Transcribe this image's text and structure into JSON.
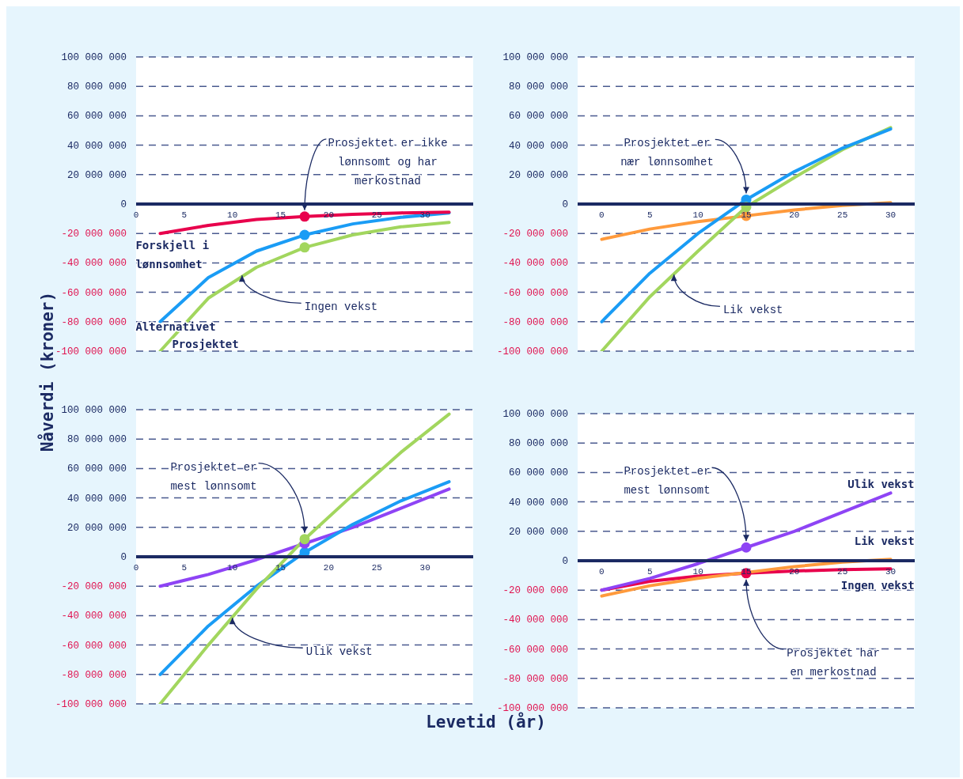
{
  "chart_data": [
    {
      "type": "line",
      "xlim": [
        0,
        35
      ],
      "xticks": [
        0,
        5,
        10,
        15,
        20,
        25,
        30
      ],
      "ylim": [
        -100000000,
        100000000
      ],
      "yticks": [
        {
          "value": -100000000,
          "label": "-100 000 000"
        },
        {
          "value": -80000000,
          "label": "-80 000 000"
        },
        {
          "value": -60000000,
          "label": "-60 000 000"
        },
        {
          "value": -40000000,
          "label": "-40 000 000"
        },
        {
          "value": -20000000,
          "label": "-20 000 000"
        },
        {
          "value": 0,
          "label": "0"
        },
        {
          "value": 20000000,
          "label": "20 000 000"
        },
        {
          "value": 40000000,
          "label": "40 000 000"
        },
        {
          "value": 60000000,
          "label": "60 000 000"
        },
        {
          "value": 80000000,
          "label": "80 000 000"
        },
        {
          "value": 100000000,
          "label": "100 000 000"
        }
      ],
      "grid": "y",
      "legend": false,
      "ylabel": "Nåverdi (kroner)",
      "series": [
        {
          "name": "Prosjektet",
          "type": "line",
          "color": "#a2d65e",
          "x": [
            2.5,
            7.5,
            12.5,
            17.5,
            22.5,
            27.5,
            32.5
          ],
          "values": [
            -100000000,
            -64000000,
            -43000000,
            -29500000,
            -21000000,
            -15500000,
            -12500000
          ]
        },
        {
          "name": "Alternativet",
          "type": "line",
          "color": "#1a9cf5",
          "x": [
            2.5,
            7.5,
            12.5,
            17.5,
            22.5,
            27.5,
            32.5
          ],
          "values": [
            -80000000,
            -50000000,
            -32000000,
            -21000000,
            -13500000,
            -9000000,
            -6000000
          ]
        },
        {
          "name": "Forskjell i lønnsomhet",
          "type": "line",
          "color": "#e8004c",
          "x": [
            2.5,
            7.5,
            12.5,
            17.5,
            22.5,
            27.5,
            32.5
          ],
          "values": [
            -20000000,
            -14500000,
            -10500000,
            -8500000,
            -7000000,
            -6000000,
            -5500000
          ]
        },
        {
          "type": "scatter",
          "marker": "circle",
          "color": "#a2d65e",
          "x": [
            17.5
          ],
          "values": [
            -29500000
          ]
        },
        {
          "type": "scatter",
          "marker": "circle",
          "color": "#1a9cf5",
          "x": [
            17.5
          ],
          "values": [
            -21000000
          ]
        },
        {
          "type": "scatter",
          "marker": "circle",
          "color": "#e8004c",
          "x": [
            17.5
          ],
          "values": [
            -8500000
          ]
        }
      ],
      "annotations": [
        {
          "text": "Prosjektet er ikke lønnsomt og har merkostnad",
          "x": 17.5,
          "y": -8500000
        },
        {
          "text": "Ingen vekst",
          "x": 11,
          "y": -48000000
        }
      ]
    },
    {
      "type": "line",
      "xlim": [
        -2.5,
        32.5
      ],
      "xticks": [
        0,
        5,
        10,
        15,
        20,
        25,
        30
      ],
      "ylim": [
        -100000000,
        100000000
      ],
      "yticks": [
        {
          "value": -100000000,
          "label": "-100 000 000"
        },
        {
          "value": -80000000,
          "label": "-80 000 000"
        },
        {
          "value": -60000000,
          "label": "-60 000 000"
        },
        {
          "value": -40000000,
          "label": "-40 000 000"
        },
        {
          "value": -20000000,
          "label": "-20 000 000"
        },
        {
          "value": 0,
          "label": "0"
        },
        {
          "value": 20000000,
          "label": "20 000 000"
        },
        {
          "value": 40000000,
          "label": "40 000 000"
        },
        {
          "value": 60000000,
          "label": "60 000 000"
        },
        {
          "value": 80000000,
          "label": "80 000 000"
        },
        {
          "value": 100000000,
          "label": "100 000 000"
        }
      ],
      "grid": "y",
      "legend": false,
      "series": [
        {
          "type": "line",
          "color": "#ff9a3c",
          "x": [
            0,
            5,
            10,
            15,
            20,
            25,
            30
          ],
          "values": [
            -24000000,
            -17000000,
            -12000000,
            -8000000,
            -4000000,
            -1000000,
            1000000
          ]
        },
        {
          "type": "line",
          "color": "#a2d65e",
          "x": [
            0,
            5,
            10,
            15,
            20,
            25,
            30
          ],
          "values": [
            -100000000,
            -63000000,
            -32000000,
            -2000000,
            18000000,
            37000000,
            52000000
          ]
        },
        {
          "type": "line",
          "color": "#1a9cf5",
          "x": [
            0,
            5,
            10,
            15,
            20,
            25,
            30
          ],
          "values": [
            -80000000,
            -47000000,
            -20000000,
            3000000,
            22000000,
            38000000,
            51000000
          ]
        },
        {
          "type": "scatter",
          "marker": "circle",
          "color": "#ff9a3c",
          "x": [
            15
          ],
          "values": [
            -8000000
          ]
        },
        {
          "type": "scatter",
          "marker": "circle",
          "color": "#1a9cf5",
          "x": [
            15
          ],
          "values": [
            3000000
          ]
        },
        {
          "type": "scatter",
          "marker": "circle",
          "color": "#a2d65e",
          "x": [
            15
          ],
          "values": [
            -2000000
          ]
        }
      ],
      "annotations": [
        {
          "text": "Prosjektet er nær lønnsomhet",
          "x": 15,
          "y": 3000000
        },
        {
          "text": "Lik vekst",
          "x": 7.5,
          "y": -47500000
        }
      ]
    },
    {
      "type": "line",
      "xlim": [
        0,
        35
      ],
      "xticks": [
        0,
        5,
        10,
        15,
        20,
        25,
        30
      ],
      "ylim": [
        -100000000,
        100000000
      ],
      "yticks": [
        {
          "value": -100000000,
          "label": "-100 000 000"
        },
        {
          "value": -80000000,
          "label": "-80 000 000"
        },
        {
          "value": -60000000,
          "label": "-60 000 000"
        },
        {
          "value": -40000000,
          "label": "-40 000 000"
        },
        {
          "value": -20000000,
          "label": "-20 000 000"
        },
        {
          "value": 0,
          "label": "0"
        },
        {
          "value": 20000000,
          "label": "20 000 000"
        },
        {
          "value": 40000000,
          "label": "40 000 000"
        },
        {
          "value": 60000000,
          "label": "60 000 000"
        },
        {
          "value": 80000000,
          "label": "80 000 000"
        },
        {
          "value": 100000000,
          "label": "100 000 000"
        }
      ],
      "grid": "y",
      "legend": false,
      "xlabel": "Levetid (år)",
      "series": [
        {
          "type": "line",
          "color": "#8e44f5",
          "x": [
            2.5,
            7.5,
            12.5,
            17.5,
            22.5,
            27.5,
            32.5
          ],
          "values": [
            -20000000,
            -12000000,
            -2000000,
            9000000,
            20000000,
            33000000,
            46000000
          ]
        },
        {
          "type": "line",
          "color": "#1a9cf5",
          "x": [
            2.5,
            7.5,
            12.5,
            17.5,
            22.5,
            27.5,
            32.5
          ],
          "values": [
            -80000000,
            -47000000,
            -20000000,
            3000000,
            22000000,
            38000000,
            51000000
          ]
        },
        {
          "type": "line",
          "color": "#a2d65e",
          "x": [
            2.5,
            7.5,
            12.5,
            17.5,
            22.5,
            27.5,
            32.5
          ],
          "values": [
            -100000000,
            -60000000,
            -22000000,
            12000000,
            42000000,
            71000000,
            97000000
          ]
        },
        {
          "type": "scatter",
          "marker": "circle",
          "color": "#1a9cf5",
          "x": [
            17.5
          ],
          "values": [
            3000000
          ]
        },
        {
          "type": "scatter",
          "marker": "circle",
          "color": "#8e44f5",
          "x": [
            17.5
          ],
          "values": [
            9000000
          ]
        },
        {
          "type": "scatter",
          "marker": "circle",
          "color": "#a2d65e",
          "x": [
            17.5
          ],
          "values": [
            12000000
          ]
        }
      ],
      "annotations": [
        {
          "text": "Prosjektet er mest lønnsomt",
          "x": 17.5,
          "y": 12000000
        },
        {
          "text": "Ulik vekst",
          "x": 10,
          "y": -41000000
        }
      ]
    },
    {
      "type": "line",
      "xlim": [
        -2.5,
        32.5
      ],
      "xticks": [
        0,
        5,
        10,
        15,
        20,
        25,
        30
      ],
      "ylim": [
        -100000000,
        100000000
      ],
      "yticks": [
        {
          "value": -100000000,
          "label": "-100 000 000"
        },
        {
          "value": -80000000,
          "label": "-80 000 000"
        },
        {
          "value": -60000000,
          "label": "-60 000 000"
        },
        {
          "value": -40000000,
          "label": "-40 000 000"
        },
        {
          "value": -20000000,
          "label": "-20 000 000"
        },
        {
          "value": 0,
          "label": "0"
        },
        {
          "value": 20000000,
          "label": "20 000 000"
        },
        {
          "value": 40000000,
          "label": "40 000 000"
        },
        {
          "value": 60000000,
          "label": "60 000 000"
        },
        {
          "value": 80000000,
          "label": "80 000 000"
        },
        {
          "value": 100000000,
          "label": "100 000 000"
        }
      ],
      "grid": "y",
      "legend": false,
      "series": [
        {
          "name": "Ingen vekst",
          "type": "line",
          "color": "#e8004c",
          "x": [
            0,
            5,
            10,
            15,
            20,
            25,
            30
          ],
          "values": [
            -20000000,
            -14000000,
            -10500000,
            -8500000,
            -7000000,
            -6000000,
            -5500000
          ]
        },
        {
          "name": "Lik vekst",
          "type": "line",
          "color": "#ff9a3c",
          "x": [
            0,
            5,
            10,
            15,
            20,
            25,
            30
          ],
          "values": [
            -24000000,
            -17000000,
            -12000000,
            -8000000,
            -4000000,
            -1000000,
            1000000
          ]
        },
        {
          "name": "Ulik vekst",
          "type": "line",
          "color": "#8e44f5",
          "x": [
            0,
            5,
            10,
            15,
            20,
            25,
            30
          ],
          "values": [
            -20000000,
            -12000000,
            -2000000,
            9000000,
            20000000,
            33000000,
            46000000
          ]
        },
        {
          "type": "scatter",
          "marker": "circle",
          "color": "#e8004c",
          "x": [
            15
          ],
          "values": [
            -8500000
          ]
        },
        {
          "type": "scatter",
          "marker": "circle",
          "color": "#8e44f5",
          "x": [
            15
          ],
          "values": [
            9000000
          ]
        }
      ],
      "annotations": [
        {
          "text": "Prosjektet er mest lønnsomt",
          "x": 15,
          "y": 9000000
        },
        {
          "text": "Prosjektet har en merkostnad",
          "x": 15,
          "y": -8500000
        }
      ]
    }
  ]
}
